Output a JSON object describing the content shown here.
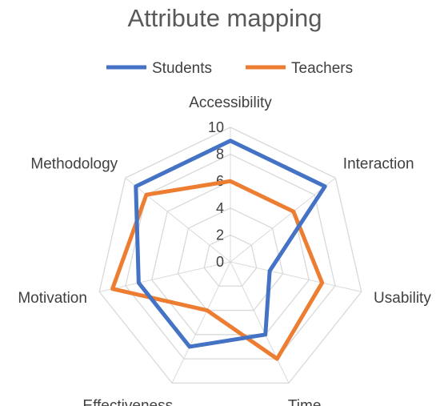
{
  "chart_data": {
    "type": "radar",
    "title": "Attribute mapping",
    "categories": [
      "Accessibility",
      "Interaction",
      "Usability",
      "Time",
      "Effectiveness",
      "Motivation",
      "Methodology"
    ],
    "rticks": [
      "0",
      "2",
      "4",
      "6",
      "8",
      "10"
    ],
    "rlim": [
      0,
      10
    ],
    "grid": true,
    "legend_position": "top",
    "series": [
      {
        "name": "Students",
        "color": "#4472C4",
        "values": [
          9,
          9,
          3,
          6,
          7,
          7,
          9
        ]
      },
      {
        "name": "Teachers",
        "color": "#ED7D31",
        "values": [
          6,
          6,
          7,
          8,
          4,
          9,
          8
        ]
      }
    ]
  }
}
